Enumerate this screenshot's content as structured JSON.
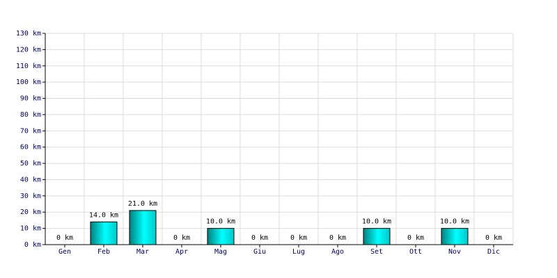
{
  "chart_data": {
    "type": "bar",
    "categories": [
      "Gen",
      "Feb",
      "Mar",
      "Apr",
      "Mag",
      "Giu",
      "Lug",
      "Ago",
      "Set",
      "Ott",
      "Nov",
      "Dic"
    ],
    "values": [
      0,
      14,
      21,
      0,
      10,
      0,
      0,
      0,
      10,
      0,
      10,
      0
    ],
    "value_labels": [
      "0 km",
      "14.0 km",
      "21.0 km",
      "0 km",
      "10.0 km",
      "0 km",
      "0 km",
      "0 km",
      "10.0 km",
      "0 km",
      "10.0 km",
      "0 km"
    ],
    "color": "#00cccc",
    "ylim": [
      0,
      130
    ],
    "yticks": [
      {
        "value": 0,
        "label": "0 km"
      },
      {
        "value": 10,
        "label": "10 km"
      },
      {
        "value": 20,
        "label": "20 km"
      },
      {
        "value": 30,
        "label": "30 km"
      },
      {
        "value": 40,
        "label": "40 km"
      },
      {
        "value": 50,
        "label": "50 km"
      },
      {
        "value": 60,
        "label": "60 km"
      },
      {
        "value": 70,
        "label": "70 km"
      },
      {
        "value": 80,
        "label": "80 km"
      },
      {
        "value": 90,
        "label": "90 km"
      },
      {
        "value": 100,
        "label": "100 km"
      },
      {
        "value": 110,
        "label": "110 km"
      },
      {
        "value": 120,
        "label": "120 km"
      },
      {
        "value": 130,
        "label": "130 km"
      }
    ],
    "grid": true
  }
}
